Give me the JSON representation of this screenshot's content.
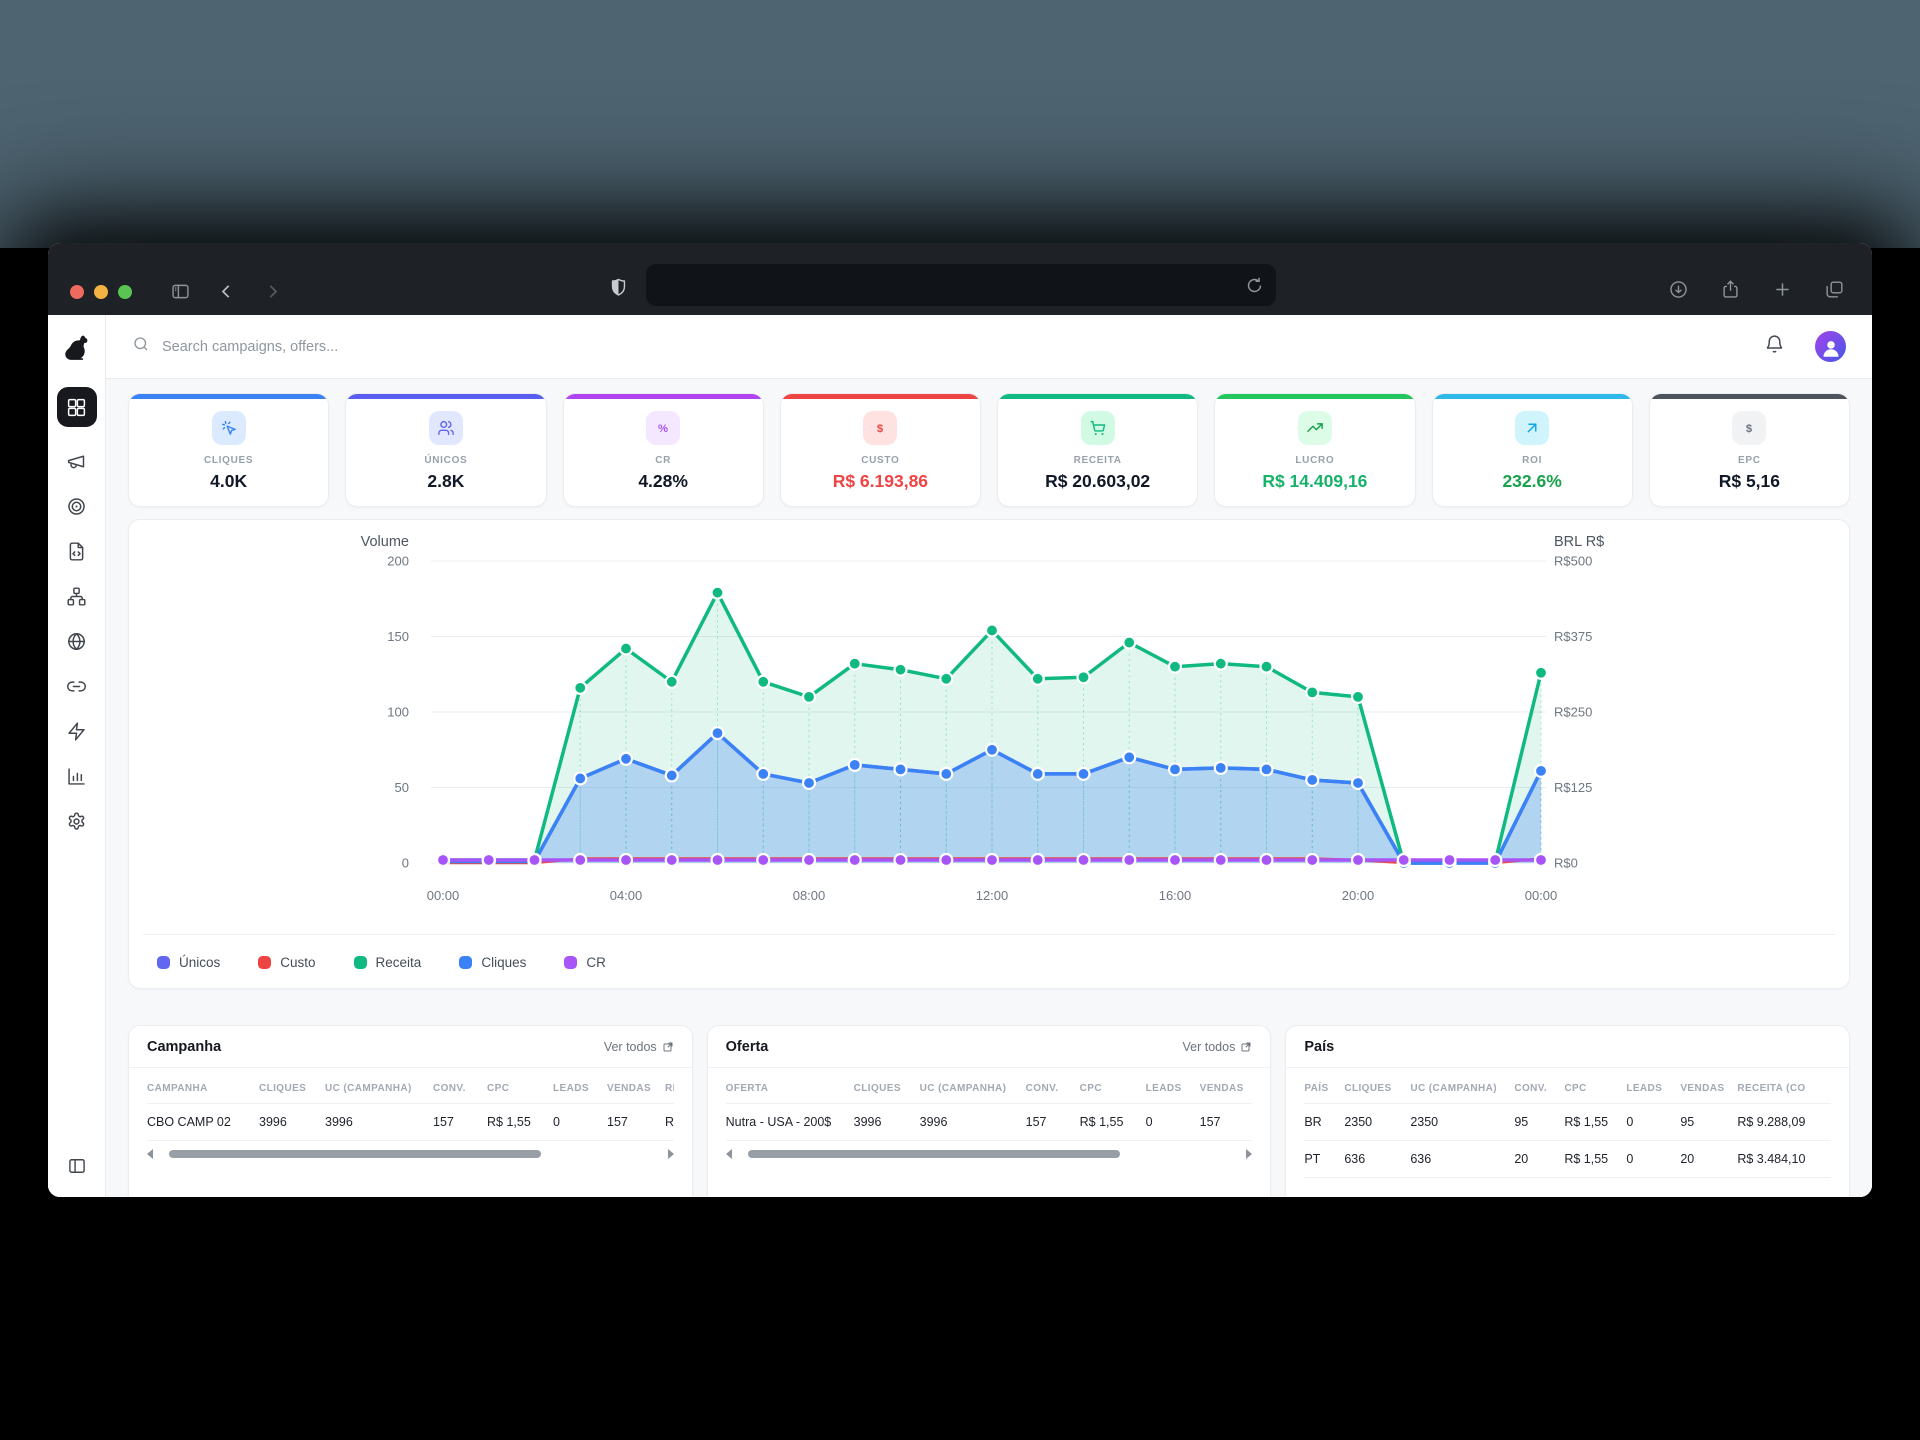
{
  "browser": {
    "window_buttons": [
      "close",
      "minimize",
      "maximize"
    ],
    "toolbar_icons": [
      "sidebar-toggle",
      "back",
      "forward",
      "privacy-shield",
      "reload",
      "downloads",
      "share",
      "new-tab",
      "tab-overview"
    ],
    "url_value": ""
  },
  "sidebar": {
    "logo_icon": "dog-logo",
    "items": [
      {
        "icon": "dashboard-grid",
        "active": true
      },
      {
        "icon": "megaphone",
        "active": false
      },
      {
        "icon": "target",
        "active": false
      },
      {
        "icon": "file-code",
        "active": false
      },
      {
        "icon": "network",
        "active": false
      },
      {
        "icon": "globe",
        "active": false
      },
      {
        "icon": "link",
        "active": false
      },
      {
        "icon": "zap",
        "active": false
      },
      {
        "icon": "bar-chart",
        "active": false
      },
      {
        "icon": "settings-gear",
        "active": false
      }
    ],
    "footer_icon": "panel-left"
  },
  "topbar": {
    "search_placeholder": "Search campaigns, offers...",
    "icons": [
      "search",
      "bell",
      "avatar"
    ]
  },
  "kpis": [
    {
      "label": "CLIQUES",
      "value": "4.0K",
      "icon": "cursor-click",
      "accent": "#3b82f6",
      "tile_bg": "#dbeafe",
      "icon_color": "#3b82f6",
      "value_color": "#111827"
    },
    {
      "label": "ÚNICOS",
      "value": "2.8K",
      "icon": "users",
      "accent": "#5b5ff0",
      "tile_bg": "#e0e7ff",
      "icon_color": "#6366f1",
      "value_color": "#111827"
    },
    {
      "label": "CR",
      "value": "4.28%",
      "icon": "percent",
      "accent": "#b044f0",
      "tile_bg": "#f3e8ff",
      "icon_color": "#a855f7",
      "value_color": "#111827"
    },
    {
      "label": "CUSTO",
      "value": "R$ 6.193,86",
      "icon": "dollar",
      "accent": "#ef4444",
      "tile_bg": "#fee2e2",
      "icon_color": "#ef4444",
      "value_color": "#ef4444"
    },
    {
      "label": "RECEITA",
      "value": "R$ 20.603,02",
      "icon": "shopping-cart",
      "accent": "#10b981",
      "tile_bg": "#d1fae5",
      "icon_color": "#10b981",
      "value_color": "#111827"
    },
    {
      "label": "LUCRO",
      "value": "R$ 14.409,16",
      "icon": "trending-up",
      "accent": "#22c55e",
      "tile_bg": "#dcfce7",
      "icon_color": "#16a34a",
      "value_color": "#17b26a"
    },
    {
      "label": "ROI",
      "value": "232.6%",
      "icon": "arrow-up-right",
      "accent": "#2fb9e9",
      "tile_bg": "#cff4fc",
      "icon_color": "#0ea5e9",
      "value_color": "#17a34a"
    },
    {
      "label": "EPC",
      "value": "R$ 5,16",
      "icon": "dollar",
      "accent": "#4e545c",
      "tile_bg": "#f1f2f4",
      "icon_color": "#6b7280",
      "value_color": "#111827"
    }
  ],
  "chart_data": {
    "type": "line",
    "left_axis": {
      "title": "Volume",
      "ticks": [
        0,
        50,
        100,
        150,
        200
      ],
      "max": 200
    },
    "right_axis": {
      "title": "BRL R$",
      "ticks": [
        "R$0",
        "R$125",
        "R$250",
        "R$375",
        "R$500"
      ]
    },
    "x_tick_labels": [
      "00:00",
      "04:00",
      "08:00",
      "12:00",
      "16:00",
      "20:00",
      "00:00"
    ],
    "x_tick_positions": [
      0,
      4,
      8,
      12,
      16,
      20,
      24
    ],
    "x_unit": "hour",
    "grid": true,
    "series": [
      {
        "name": "Únicos",
        "color": "#6366f1",
        "dots": false,
        "fill": null,
        "stems": false,
        "values": [
          1,
          1,
          1,
          56,
          69,
          58,
          86,
          59,
          53,
          65,
          62,
          59,
          75,
          59,
          59,
          70,
          62,
          63,
          62,
          55,
          53,
          0,
          0,
          0,
          61
        ]
      },
      {
        "name": "Custo",
        "color": "#ef4444",
        "dots": false,
        "fill": null,
        "stems": false,
        "values": [
          0,
          0,
          0,
          3,
          3,
          3,
          3,
          3,
          3,
          3,
          3,
          3,
          3,
          3,
          3,
          3,
          3,
          3,
          3,
          3,
          2,
          0,
          0,
          0,
          3
        ]
      },
      {
        "name": "Receita",
        "color": "#10b981",
        "dots": true,
        "fill": "rgba(16,185,129,0.13)",
        "stems": true,
        "values": [
          2,
          2,
          2,
          116,
          142,
          120,
          179,
          120,
          110,
          132,
          128,
          122,
          154,
          122,
          123,
          146,
          130,
          132,
          130,
          113,
          110,
          0,
          0,
          1,
          126
        ]
      },
      {
        "name": "Cliques",
        "color": "#3b82f6",
        "dots": true,
        "fill": "rgba(59,130,246,0.28)",
        "stems": true,
        "values": [
          1,
          1,
          1,
          56,
          69,
          58,
          86,
          59,
          53,
          65,
          62,
          59,
          75,
          59,
          59,
          70,
          62,
          63,
          62,
          55,
          53,
          0,
          0,
          0,
          61
        ]
      },
      {
        "name": "CR",
        "color": "#a855f7",
        "dots": true,
        "fill": null,
        "stems": false,
        "values": [
          2,
          2,
          2,
          2,
          2,
          2,
          2,
          2,
          2,
          2,
          2,
          2,
          2,
          2,
          2,
          2,
          2,
          2,
          2,
          2,
          2,
          2,
          2,
          2,
          2
        ]
      }
    ],
    "legend": [
      "Únicos",
      "Custo",
      "Receita",
      "Cliques",
      "CR"
    ],
    "legend_position": "bottom-left"
  },
  "tables": [
    {
      "title": "Campanha",
      "link": "Ver todos",
      "scrollbar": true,
      "columns": [
        "CAMPANHA",
        "CLIQUES",
        "UC (CAMPANHA)",
        "CONV.",
        "CPC",
        "LEADS",
        "VENDAS",
        "RECEITA"
      ],
      "rows": [
        [
          "CBO CAMP 02",
          "3996",
          "3996",
          "157",
          "R$ 1,55",
          "0",
          "157",
          "R$"
        ]
      ]
    },
    {
      "title": "Oferta",
      "link": "Ver todos",
      "scrollbar": true,
      "columns": [
        "OFERTA",
        "CLIQUES",
        "UC (CAMPANHA)",
        "CONV.",
        "CPC",
        "LEADS",
        "VENDAS"
      ],
      "rows": [
        [
          "Nutra - USA - 200$",
          "3996",
          "3996",
          "157",
          "R$ 1,55",
          "0",
          "157"
        ]
      ]
    },
    {
      "title": "País",
      "link": null,
      "scrollbar": false,
      "columns": [
        "PAÍS",
        "CLIQUES",
        "UC (CAMPANHA)",
        "CONV.",
        "CPC",
        "LEADS",
        "VENDAS",
        "RECEITA (CO"
      ],
      "rows": [
        [
          "BR",
          "2350",
          "2350",
          "95",
          "R$ 1,55",
          "0",
          "95",
          "R$ 9.288,09"
        ],
        [
          "PT",
          "636",
          "636",
          "20",
          "R$ 1,55",
          "0",
          "20",
          "R$ 3.484,10"
        ]
      ]
    }
  ]
}
